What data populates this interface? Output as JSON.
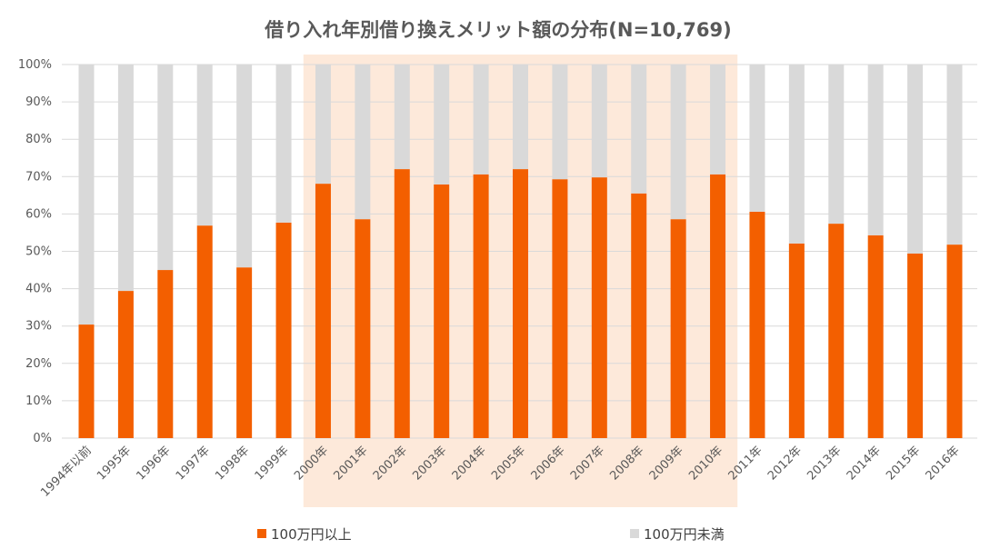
{
  "chart_data": {
    "type": "bar",
    "stacked": true,
    "percent": true,
    "title": "借り入れ年別借り換えメリット額の分布(N=10,769)",
    "xlabel": "",
    "ylabel": "",
    "ylim": [
      0,
      100
    ],
    "yticks": [
      "0%",
      "10%",
      "20%",
      "30%",
      "40%",
      "50%",
      "60%",
      "70%",
      "80%",
      "90%",
      "100%"
    ],
    "grid": true,
    "legend_position": "bottom",
    "categories": [
      "1994年以前",
      "1995年",
      "1996年",
      "1997年",
      "1998年",
      "1999年",
      "2000年",
      "2001年",
      "2002年",
      "2003年",
      "2004年",
      "2005年",
      "2006年",
      "2007年",
      "2008年",
      "2009年",
      "2010年",
      "2011年",
      "2012年",
      "2013年",
      "2014年",
      "2015年",
      "2016年"
    ],
    "series": [
      {
        "name": "100万円以上",
        "color": "#f35f00",
        "values": [
          30.4,
          39.4,
          45.0,
          56.9,
          45.7,
          57.7,
          68.1,
          58.6,
          72.0,
          67.9,
          70.6,
          72.0,
          69.3,
          69.8,
          65.5,
          58.6,
          70.6,
          60.6,
          52.1,
          57.4,
          54.3,
          49.4,
          51.8
        ]
      },
      {
        "name": "100万円未満",
        "color": "#d9d9d9",
        "values": [
          69.6,
          60.6,
          55.0,
          43.1,
          54.3,
          42.3,
          31.9,
          41.4,
          28.0,
          32.1,
          29.4,
          28.0,
          30.7,
          30.2,
          34.5,
          41.4,
          29.4,
          39.4,
          47.9,
          42.6,
          45.7,
          50.6,
          48.2
        ]
      }
    ],
    "highlight_range": [
      "2000年",
      "2010年"
    ],
    "highlight_color": "#fde9da"
  }
}
